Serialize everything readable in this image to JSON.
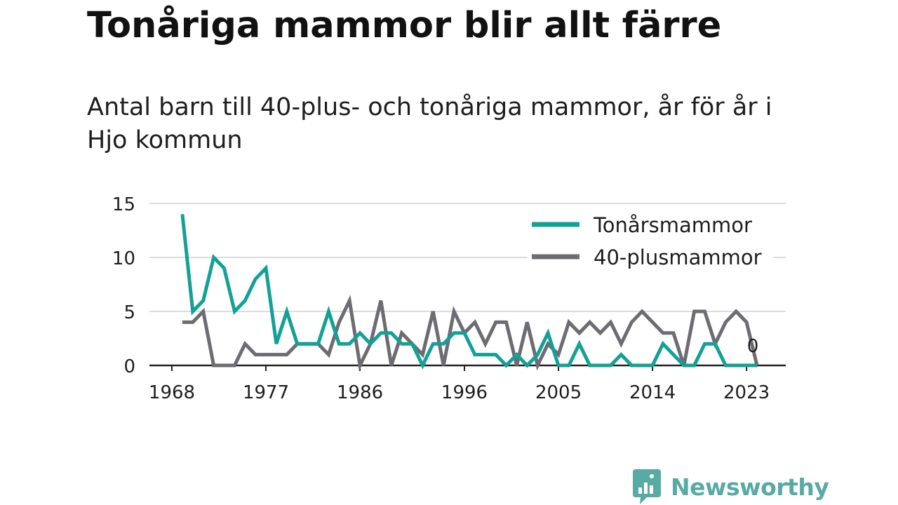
{
  "page": {
    "title": "Tonåriga mammor blir allt färre",
    "subtitle": "Antal barn till 40-plus- och tonåriga mammor, år för år i Hjo kommun"
  },
  "brand": {
    "name": "Newsworthy",
    "color": "#58aaa4"
  },
  "chart_data": {
    "type": "line",
    "title": "",
    "xlabel": "",
    "ylabel": "",
    "x_ticks": [
      "1968",
      "1977",
      "1986",
      "1996",
      "2005",
      "2014",
      "2023"
    ],
    "y_ticks": [
      "0",
      "5",
      "10",
      "15"
    ],
    "ylim": [
      0,
      15
    ],
    "xlim": [
      1968,
      2024
    ],
    "grid": true,
    "legend": "top-right",
    "end_label": "0",
    "x": [
      1969,
      1970,
      1971,
      1972,
      1973,
      1974,
      1975,
      1976,
      1977,
      1978,
      1979,
      1980,
      1981,
      1982,
      1983,
      1984,
      1985,
      1986,
      1987,
      1988,
      1989,
      1990,
      1991,
      1992,
      1993,
      1994,
      1995,
      1996,
      1997,
      1998,
      1999,
      2000,
      2001,
      2002,
      2003,
      2004,
      2005,
      2006,
      2007,
      2008,
      2009,
      2010,
      2011,
      2012,
      2013,
      2014,
      2015,
      2016,
      2017,
      2018,
      2019,
      2020,
      2021,
      2022,
      2023,
      2024
    ],
    "series": [
      {
        "name": "Tonårsmammor",
        "color": "#13a196",
        "values": [
          14,
          5,
          6,
          10,
          9,
          5,
          6,
          8,
          9,
          2,
          5,
          2,
          2,
          2,
          5,
          2,
          2,
          3,
          2,
          3,
          3,
          2,
          2,
          0,
          2,
          2,
          3,
          3,
          1,
          1,
          1,
          0,
          1,
          0,
          1,
          3,
          0,
          0,
          2,
          0,
          0,
          0,
          1,
          0,
          0,
          0,
          2,
          1,
          0,
          0,
          2,
          2,
          0,
          0,
          0,
          0
        ]
      },
      {
        "name": "40-plusmammor",
        "color": "#6c6c72",
        "values": [
          4,
          4,
          5,
          0,
          0,
          0,
          2,
          1,
          1,
          1,
          1,
          2,
          2,
          2,
          1,
          4,
          6,
          0,
          2,
          6,
          0,
          3,
          2,
          1,
          5,
          0,
          5,
          3,
          4,
          2,
          4,
          4,
          0,
          4,
          0,
          2,
          1,
          4,
          3,
          4,
          3,
          4,
          2,
          4,
          5,
          4,
          3,
          3,
          0,
          5,
          5,
          2,
          4,
          5,
          4,
          0
        ]
      }
    ]
  }
}
